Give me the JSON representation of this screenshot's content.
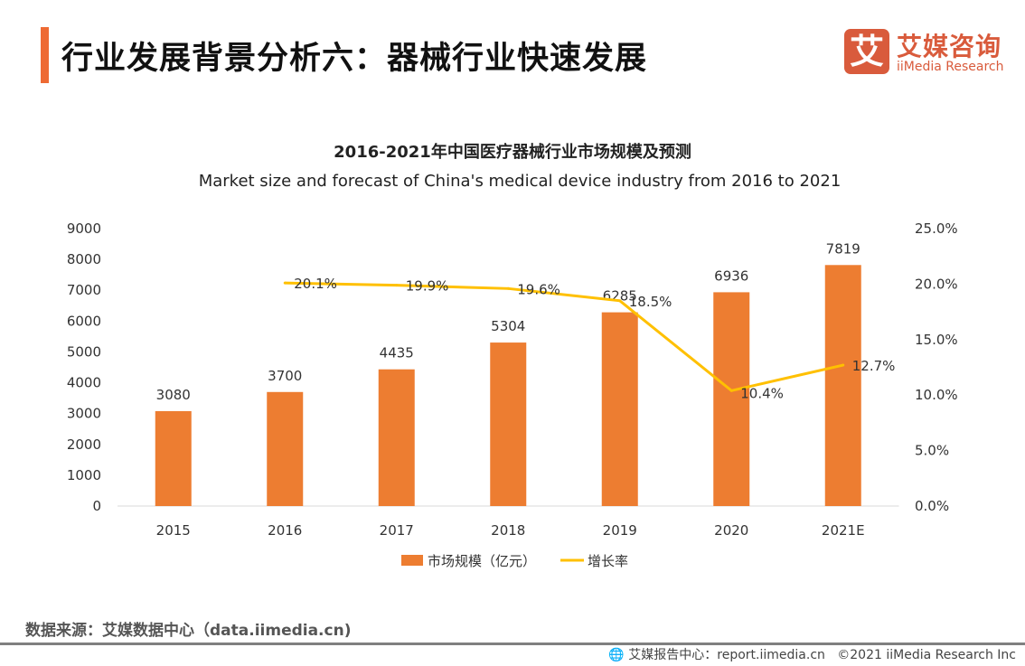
{
  "header": {
    "title": "行业发展背景分析六：器械行业快速发展"
  },
  "logo": {
    "mark": "艾",
    "cn": "艾媒咨询",
    "en": "iiMedia Research"
  },
  "chart_data": {
    "type": "bar+line",
    "title": "2016-2021年中国医疗器械行业市场规模及预测",
    "subtitle": "Market size and forecast of China's medical device industry from 2016 to 2021",
    "categories": [
      "2015",
      "2016",
      "2017",
      "2018",
      "2019",
      "2020",
      "2021E"
    ],
    "series": [
      {
        "name": "市场规模（亿元）",
        "type": "bar",
        "axis": "left",
        "color": "#ed7d31",
        "values": [
          3080,
          3700,
          4435,
          5304,
          6285,
          6936,
          7819
        ],
        "labels": [
          "3080",
          "3700",
          "4435",
          "5304",
          "6285",
          "6936",
          "7819"
        ]
      },
      {
        "name": "增长率",
        "type": "line",
        "axis": "right",
        "color": "#ffc000",
        "values": [
          null,
          20.1,
          19.9,
          19.6,
          18.5,
          10.4,
          12.7
        ],
        "labels": [
          "",
          "20.1%",
          "19.9%",
          "19.6%",
          "18.5%",
          "10.4%",
          "12.7%"
        ]
      }
    ],
    "left_axis": {
      "ylim": [
        0,
        9000
      ],
      "ticks": [
        "0",
        "1000",
        "2000",
        "3000",
        "4000",
        "5000",
        "6000",
        "7000",
        "8000",
        "9000"
      ]
    },
    "right_axis": {
      "ylim": [
        0,
        25
      ],
      "ticks": [
        "0.0%",
        "5.0%",
        "10.0%",
        "15.0%",
        "20.0%",
        "25.0%"
      ]
    },
    "grid": false,
    "legend_position": "bottom"
  },
  "footer": {
    "source": "数据来源：艾媒数据中心（data.iimedia.cn)",
    "report": "艾媒报告中心：report.iimedia.cn",
    "copyright": "©2021  iiMedia Research  Inc"
  }
}
